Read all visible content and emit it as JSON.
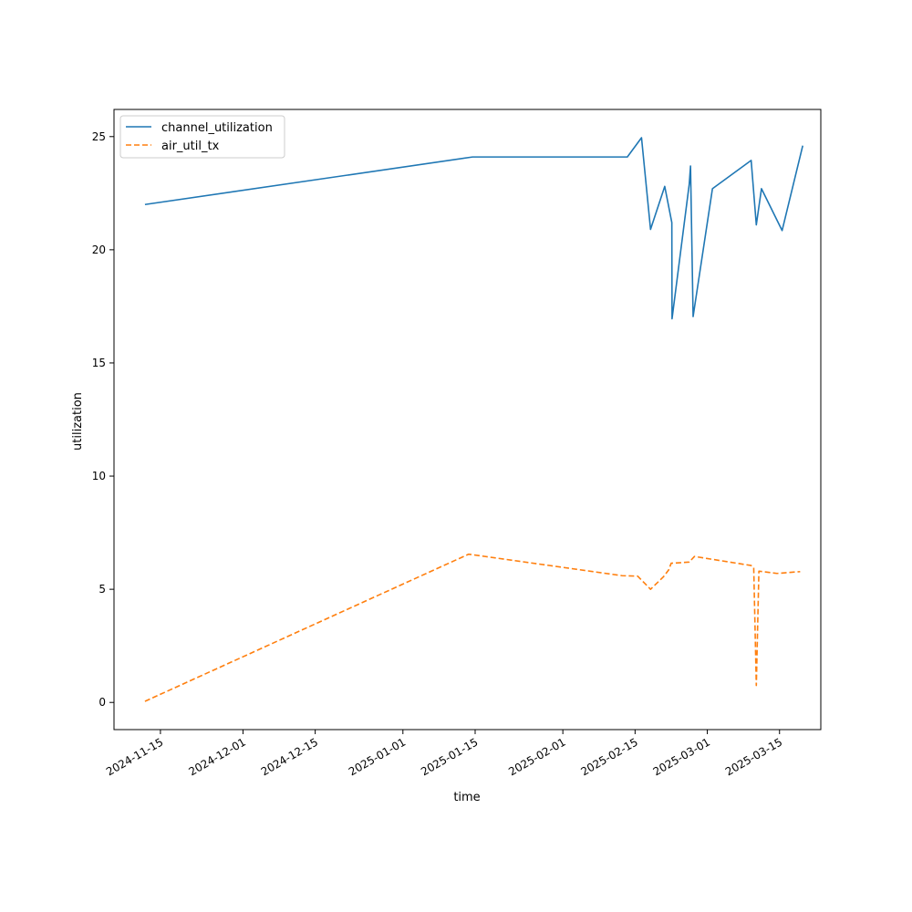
{
  "chart_data": {
    "type": "line",
    "title": "",
    "xlabel": "time",
    "ylabel": "utilization",
    "xlim": [
      "2024-11-06",
      "2025-03-23"
    ],
    "ylim": [
      -1.2,
      26.2
    ],
    "grid": false,
    "legend_position": "top-left",
    "x_ticks": [
      "2024-11-15",
      "2024-12-01",
      "2024-12-15",
      "2025-01-01",
      "2025-01-15",
      "2025-02-01",
      "2025-02-15",
      "2025-03-01",
      "2025-03-15"
    ],
    "y_ticks": [
      0,
      5,
      10,
      15,
      20,
      25
    ],
    "series": [
      {
        "name": "channel_utilization",
        "color": "#1f77b4",
        "style": "solid",
        "points": [
          [
            "2024-11-12T00:00",
            22.0
          ],
          [
            "2025-01-14T12:00",
            24.1
          ],
          [
            "2025-02-13T12:00",
            24.1
          ],
          [
            "2025-02-16T06:00",
            24.95
          ],
          [
            "2025-02-18T00:00",
            20.9
          ],
          [
            "2025-02-20T18:00",
            22.8
          ],
          [
            "2025-02-22T03:00",
            21.2
          ],
          [
            "2025-02-22T04:00",
            16.95
          ],
          [
            "2025-02-25T12:00",
            22.9
          ],
          [
            "2025-02-25T18:00",
            23.7
          ],
          [
            "2025-02-26T06:00",
            17.05
          ],
          [
            "2025-03-02T00:00",
            22.7
          ],
          [
            "2025-03-09T12:00",
            23.95
          ],
          [
            "2025-03-10T12:00",
            21.1
          ],
          [
            "2025-03-11T12:00",
            22.7
          ],
          [
            "2025-03-15T12:00",
            20.85
          ],
          [
            "2025-03-19T12:00",
            24.6
          ]
        ]
      },
      {
        "name": "air_util_tx",
        "color": "#ff7f0e",
        "style": "dashed",
        "points": [
          [
            "2024-11-12T00:00",
            0.05
          ],
          [
            "2025-01-13T18:00",
            6.55
          ],
          [
            "2025-02-12T12:00",
            5.6
          ],
          [
            "2025-02-15T12:00",
            5.58
          ],
          [
            "2025-02-18T00:00",
            5.0
          ],
          [
            "2025-02-20T12:00",
            5.55
          ],
          [
            "2025-02-21T12:00",
            5.85
          ],
          [
            "2025-02-22T00:00",
            6.15
          ],
          [
            "2025-02-25T12:00",
            6.2
          ],
          [
            "2025-02-26T12:00",
            6.45
          ],
          [
            "2025-03-09T12:00",
            6.05
          ],
          [
            "2025-03-10T00:00",
            5.95
          ],
          [
            "2025-03-10T12:00",
            0.75
          ],
          [
            "2025-03-11T00:00",
            5.8
          ],
          [
            "2025-03-14T12:00",
            5.7
          ],
          [
            "2025-03-19T00:00",
            5.78
          ]
        ]
      }
    ]
  }
}
